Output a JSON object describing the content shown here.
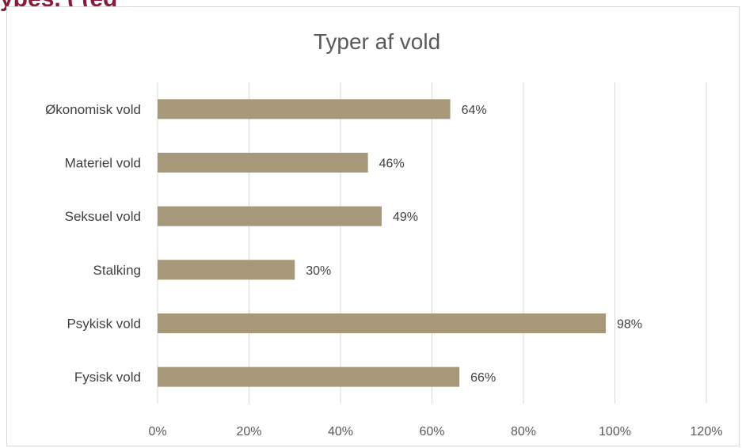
{
  "header_strip": {
    "visible_fragments": "ypes, (                                    (eg"
  },
  "colors": {
    "bar": "#a69878",
    "grid": "#d9d9d9",
    "text": "#404040",
    "title": "#595959",
    "header_text": "#8b1a3a"
  },
  "chart_data": {
    "type": "bar",
    "orientation": "horizontal",
    "title": "Typer af vold",
    "categories": [
      "Økonomisk vold",
      "Materiel vold",
      "Seksuel vold",
      "Stalking",
      "Psykisk vold",
      "Fysisk vold"
    ],
    "values": [
      0.64,
      0.46,
      0.49,
      0.3,
      0.98,
      0.66
    ],
    "data_labels": [
      "64%",
      "46%",
      "49%",
      "30%",
      "98%",
      "66%"
    ],
    "x_ticks": [
      0,
      0.2,
      0.4,
      0.6,
      0.8,
      1.0,
      1.2
    ],
    "x_tick_labels": [
      "0%",
      "20%",
      "40%",
      "60%",
      "80%",
      "100%",
      "120%"
    ],
    "xlim": [
      0,
      1.2
    ],
    "xlabel": "",
    "ylabel": "",
    "grid": "vertical",
    "legend": "none"
  }
}
